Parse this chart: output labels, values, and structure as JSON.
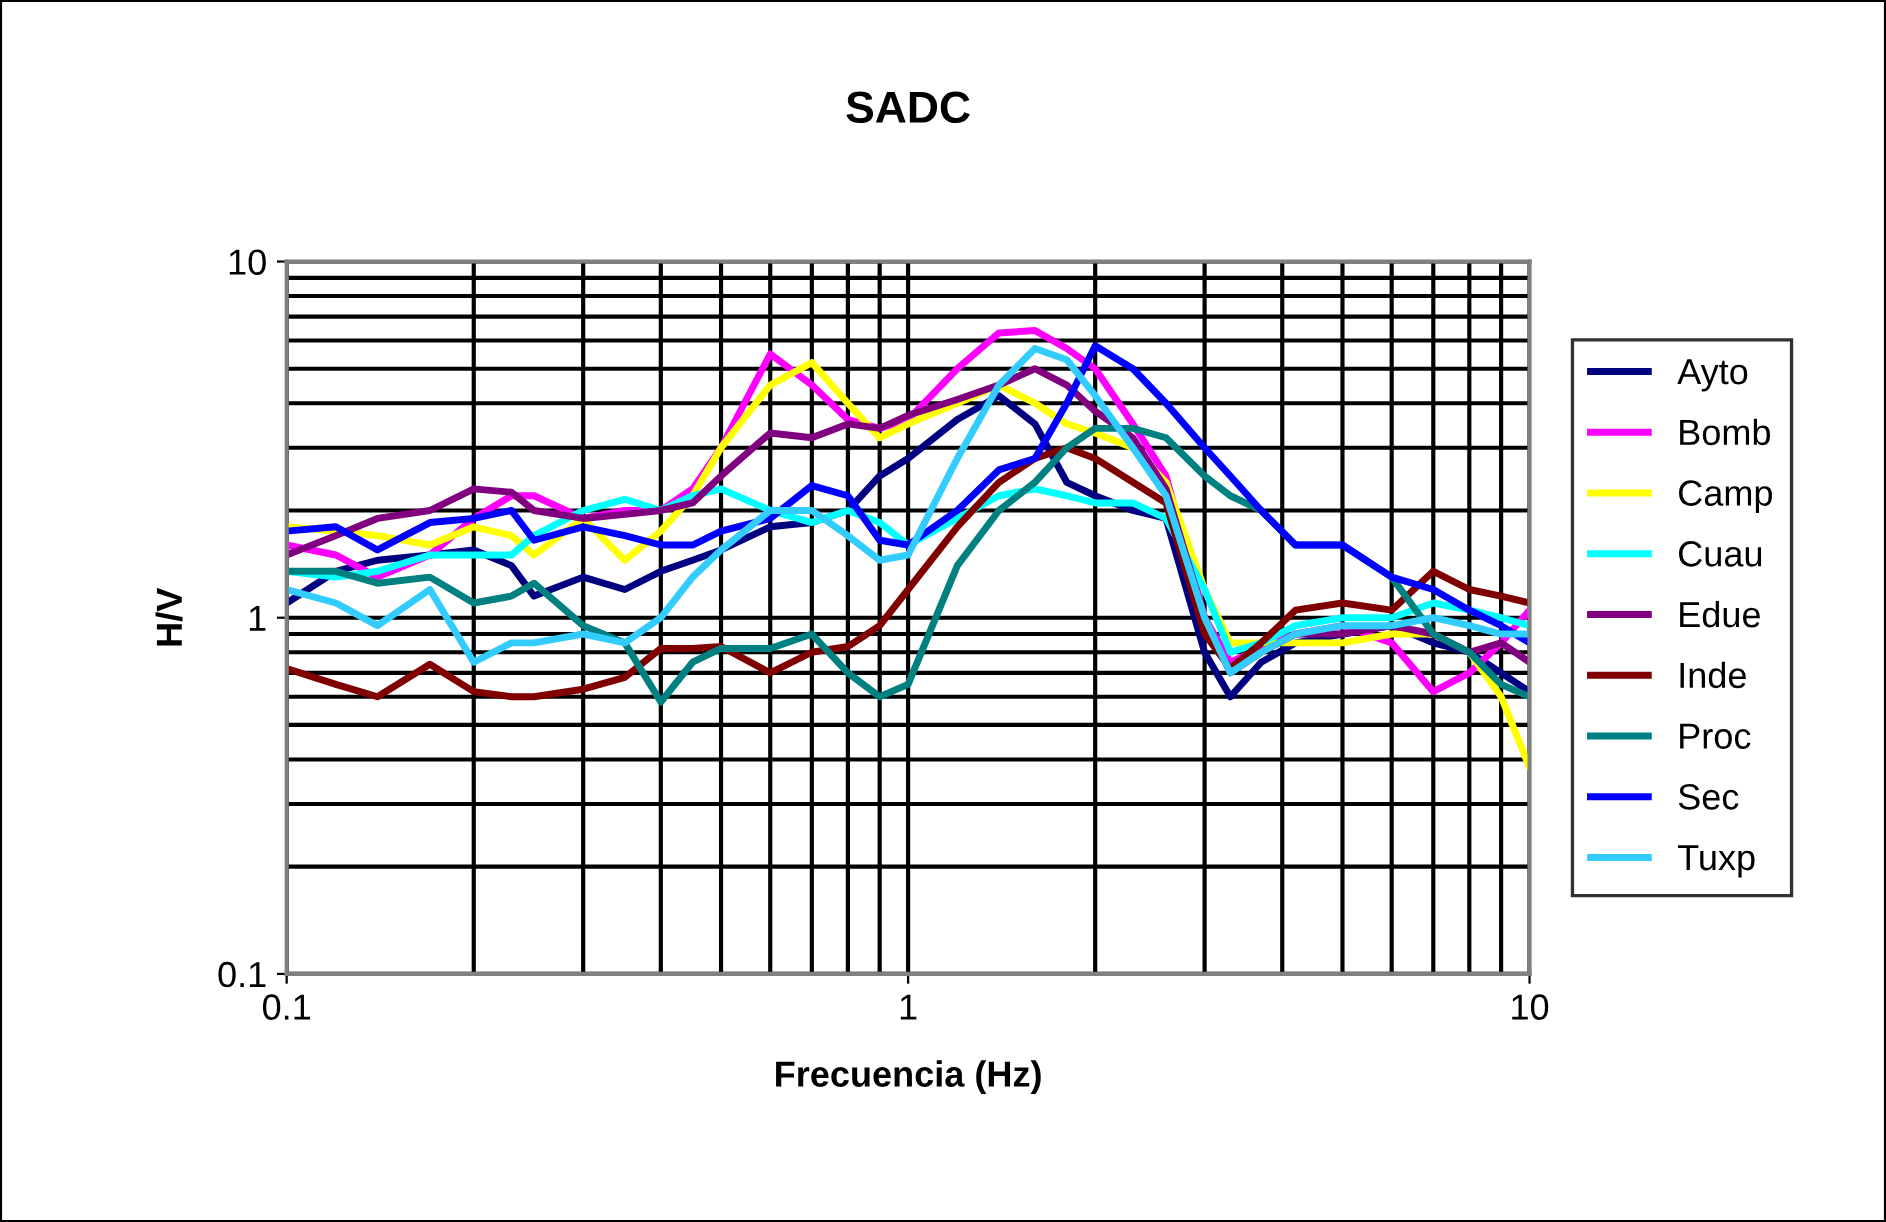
{
  "chart_data": {
    "type": "line",
    "title": "SADC",
    "xlabel": "Frecuencia (Hz)",
    "ylabel": "H/V",
    "log": "xy",
    "xlim": [
      0.1,
      10
    ],
    "ylim": [
      0.1,
      10
    ],
    "xticks": [
      0.1,
      1,
      10
    ],
    "yticks": [
      0.1,
      1,
      10
    ],
    "grid": true,
    "legend": "right",
    "marker": "none",
    "line_style": "solid",
    "x": [
      0.1,
      0.12,
      0.14,
      0.17,
      0.2,
      0.23,
      0.25,
      0.3,
      0.35,
      0.4,
      0.45,
      0.5,
      0.6,
      0.7,
      0.8,
      0.9,
      1.0,
      1.2,
      1.4,
      1.6,
      1.8,
      2.0,
      2.3,
      2.6,
      3.0,
      3.3,
      3.7,
      4.2,
      5,
      6,
      7,
      8,
      9,
      10
    ],
    "series": [
      {
        "name": "Ayto",
        "color": "#000080",
        "values": [
          1.1,
          1.35,
          1.45,
          1.5,
          1.55,
          1.4,
          1.15,
          1.3,
          1.2,
          1.35,
          1.45,
          1.55,
          1.8,
          1.85,
          2.0,
          2.5,
          2.8,
          3.6,
          4.2,
          3.5,
          2.4,
          2.2,
          2.0,
          1.9,
          0.8,
          0.6,
          0.75,
          0.85,
          0.9,
          0.95,
          0.85,
          0.8,
          0.7,
          0.62
        ]
      },
      {
        "name": "Bomb",
        "color": "#ff00ff",
        "values": [
          1.6,
          1.5,
          1.3,
          1.5,
          1.9,
          2.2,
          2.2,
          1.9,
          2.0,
          2.0,
          2.3,
          3.0,
          5.5,
          4.5,
          3.6,
          3.4,
          3.6,
          5.0,
          6.3,
          6.4,
          5.7,
          5.0,
          3.5,
          2.5,
          1.0,
          0.75,
          0.82,
          0.9,
          0.95,
          0.85,
          0.62,
          0.7,
          0.85,
          1.05
        ]
      },
      {
        "name": "Camp",
        "color": "#ffff00",
        "values": [
          1.8,
          1.75,
          1.7,
          1.6,
          1.8,
          1.7,
          1.5,
          1.9,
          1.45,
          1.75,
          2.2,
          3.0,
          4.5,
          5.2,
          4.0,
          3.2,
          3.5,
          4.0,
          4.5,
          4.0,
          3.5,
          3.3,
          3.0,
          2.4,
          1.2,
          0.85,
          0.85,
          0.85,
          0.85,
          0.9,
          0.9,
          0.8,
          0.6,
          0.38
        ]
      },
      {
        "name": "Cuau",
        "color": "#00ffff",
        "values": [
          1.35,
          1.3,
          1.35,
          1.5,
          1.5,
          1.5,
          1.7,
          2.0,
          2.15,
          2.0,
          2.2,
          2.3,
          2.0,
          1.85,
          2.0,
          1.85,
          1.6,
          1.9,
          2.2,
          2.3,
          2.2,
          2.1,
          2.1,
          1.9,
          1.2,
          0.8,
          0.85,
          0.95,
          1.0,
          1.0,
          1.1,
          1.05,
          1.0,
          0.95
        ]
      },
      {
        "name": "Edue",
        "color": "#800080",
        "values": [
          1.5,
          1.7,
          1.9,
          2.0,
          2.3,
          2.25,
          2.0,
          1.9,
          1.95,
          2.0,
          2.1,
          2.5,
          3.3,
          3.2,
          3.5,
          3.4,
          3.7,
          4.1,
          4.5,
          5.0,
          4.5,
          3.8,
          3.2,
          2.3,
          1.0,
          0.7,
          0.8,
          0.9,
          0.9,
          0.95,
          0.9,
          0.8,
          0.85,
          0.75
        ]
      },
      {
        "name": "Inde",
        "color": "#800000",
        "values": [
          0.72,
          0.65,
          0.6,
          0.74,
          0.62,
          0.6,
          0.6,
          0.63,
          0.68,
          0.82,
          0.82,
          0.83,
          0.7,
          0.8,
          0.83,
          0.95,
          1.2,
          1.8,
          2.4,
          2.8,
          3.0,
          2.8,
          2.4,
          2.1,
          0.9,
          0.72,
          0.85,
          1.05,
          1.1,
          1.05,
          1.35,
          1.2,
          1.15,
          1.1
        ]
      },
      {
        "name": "Proc",
        "color": "#008080",
        "values": [
          1.35,
          1.35,
          1.25,
          1.3,
          1.1,
          1.15,
          1.25,
          0.95,
          0.85,
          0.58,
          0.75,
          0.82,
          0.82,
          0.9,
          0.7,
          0.6,
          0.65,
          1.4,
          2.0,
          2.4,
          3.0,
          3.4,
          3.4,
          3.2,
          2.5,
          2.2,
          2.0,
          1.6,
          1.6,
          1.3,
          0.9,
          0.8,
          0.65,
          0.6
        ]
      },
      {
        "name": "Sec",
        "color": "#0000ff",
        "values": [
          1.75,
          1.8,
          1.55,
          1.85,
          1.9,
          2.0,
          1.65,
          1.8,
          1.7,
          1.6,
          1.6,
          1.75,
          1.9,
          2.35,
          2.2,
          1.65,
          1.6,
          2.0,
          2.6,
          2.8,
          4.0,
          5.8,
          5.0,
          4.0,
          3.0,
          2.5,
          2.0,
          1.6,
          1.6,
          1.3,
          1.2,
          1.05,
          0.95,
          0.85
        ]
      },
      {
        "name": "Tuxp",
        "color": "#33ccff",
        "values": [
          1.2,
          1.1,
          0.95,
          1.2,
          0.75,
          0.85,
          0.85,
          0.9,
          0.85,
          1.0,
          1.3,
          1.55,
          2.0,
          2.0,
          1.7,
          1.45,
          1.5,
          2.8,
          4.5,
          5.7,
          5.3,
          4.2,
          3.0,
          2.2,
          1.0,
          0.7,
          0.8,
          0.9,
          0.95,
          0.95,
          1.0,
          0.95,
          0.9,
          0.9
        ]
      }
    ]
  }
}
